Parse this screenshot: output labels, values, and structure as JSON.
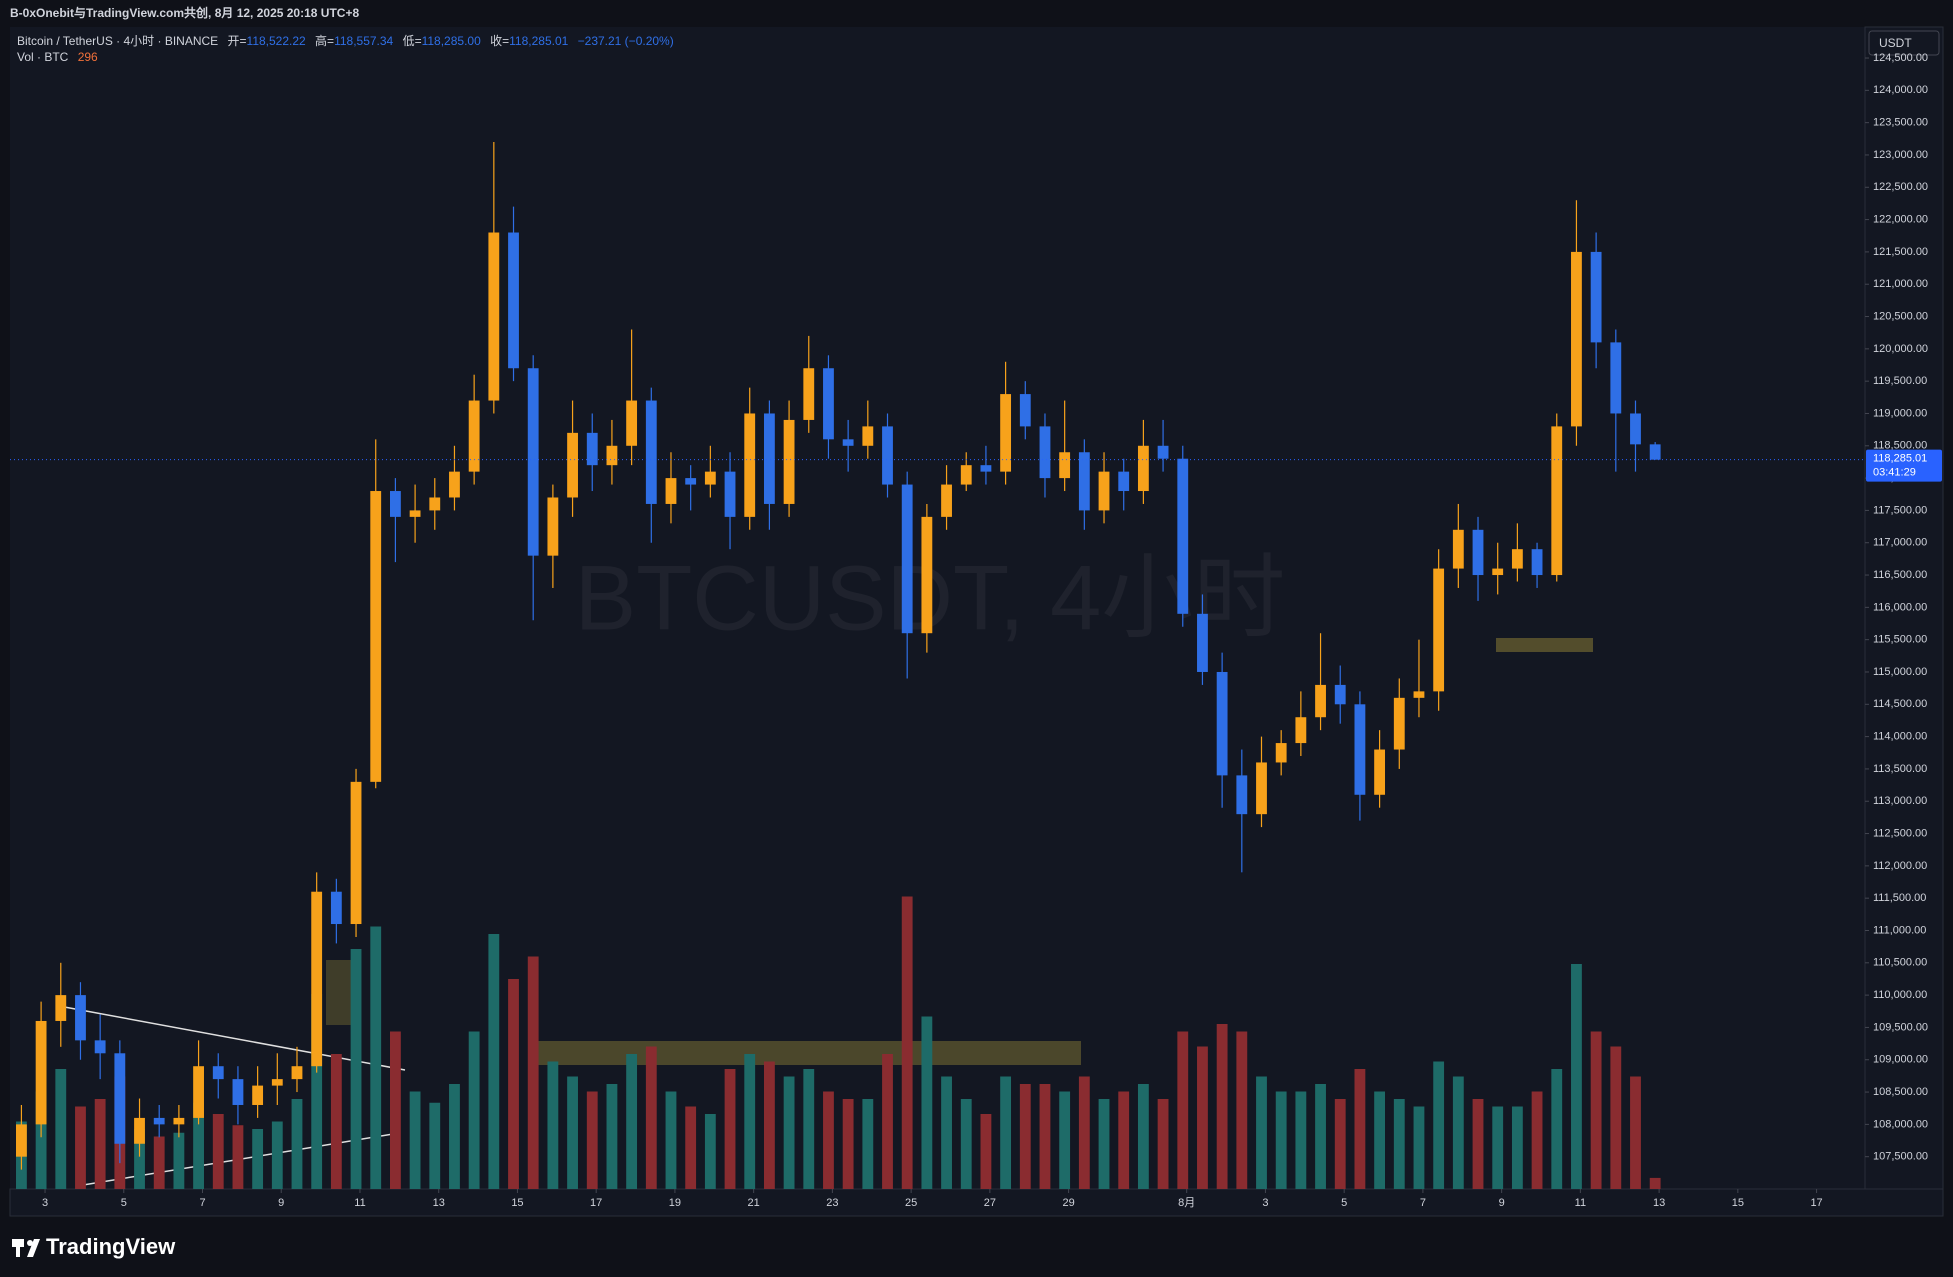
{
  "header": {
    "share_note": "B-0xOnebit与TradingView.com共创, 8月 12, 2025 20:18 UTC+8",
    "currency": "USDT",
    "logo": "TradingView"
  },
  "chart_data": {
    "type": "candlestick",
    "symbol": "Bitcoin / TetherUS · 4小时 · BINANCE",
    "legend": {
      "open_label": "开=",
      "open": "118,522.22",
      "high_label": "高=",
      "high": "118,557.34",
      "low_label": "低=",
      "low": "118,285.00",
      "close_label": "收=",
      "close": "118,285.01",
      "change": "−237.21 (−0.20%)"
    },
    "volume_title": "Vol · BTC",
    "volume_last": "296",
    "watermark": "BTCUSDT, 4小时",
    "up_color": "#f7a21b",
    "down_color": "#2f6fe6",
    "volume_up_color": "#1e6b68",
    "volume_down_color": "#8a2c30",
    "last_price": {
      "value": 118285.01,
      "label": "118,285.01"
    },
    "countdown": "03:41:29",
    "xlim": [
      2.11,
      49.23
    ],
    "xticks": [
      3,
      5,
      7,
      9,
      11,
      13,
      15,
      17,
      19,
      21,
      23,
      25,
      27,
      29,
      {
        "value": 32,
        "label": "8月"
      },
      {
        "value": 34,
        "label": "3"
      },
      {
        "value": 36,
        "label": "5"
      },
      {
        "value": 38,
        "label": "7"
      },
      {
        "value": 40,
        "label": "9"
      },
      {
        "value": 42,
        "label": "11"
      },
      {
        "value": 44,
        "label": "13"
      },
      {
        "value": 46,
        "label": "15"
      },
      {
        "value": 48,
        "label": "17"
      }
    ],
    "ylim": [
      107000,
      124980
    ],
    "yticks": [
      {
        "value": 107500,
        "label": "107,500.00"
      },
      {
        "value": 108000,
        "label": "108,000.00"
      },
      {
        "value": 108500,
        "label": "108,500.00"
      },
      {
        "value": 109000,
        "label": "109,000.00"
      },
      {
        "value": 109500,
        "label": "109,500.00"
      },
      {
        "value": 110000,
        "label": "110,000.00"
      },
      {
        "value": 110500,
        "label": "110,500.00"
      },
      {
        "value": 111000,
        "label": "111,000.00"
      },
      {
        "value": 111500,
        "label": "111,500.00"
      },
      {
        "value": 112000,
        "label": "112,000.00"
      },
      {
        "value": 112500,
        "label": "112,500.00"
      },
      {
        "value": 113000,
        "label": "113,000.00"
      },
      {
        "value": 113500,
        "label": "113,500.00"
      },
      {
        "value": 114000,
        "label": "114,000.00"
      },
      {
        "value": 114500,
        "label": "114,500.00"
      },
      {
        "value": 115000,
        "label": "115,000.00"
      },
      {
        "value": 115500,
        "label": "115,500.00"
      },
      {
        "value": 116000,
        "label": "116,000.00"
      },
      {
        "value": 116500,
        "label": "116,500.00"
      },
      {
        "value": 117000,
        "label": "117,000.00"
      },
      {
        "value": 117500,
        "label": "117,500.00"
      },
      {
        "value": 118000,
        "label": "118,000.00"
      },
      {
        "value": 118500,
        "label": "118,500.00"
      },
      {
        "value": 119000,
        "label": "119,000.00"
      },
      {
        "value": 119500,
        "label": "119,500.00"
      },
      {
        "value": 120000,
        "label": "120,000.00"
      },
      {
        "value": 120500,
        "label": "120,500.00"
      },
      {
        "value": 121000,
        "label": "121,000.00"
      },
      {
        "value": 121500,
        "label": "121,500.00"
      },
      {
        "value": 122000,
        "label": "122,000.00"
      },
      {
        "value": 122500,
        "label": "122,500.00"
      },
      {
        "value": 123000,
        "label": "123,000.00"
      },
      {
        "value": 123500,
        "label": "123,500.00"
      },
      {
        "value": 124000,
        "label": "124,000.00"
      },
      {
        "value": 124500,
        "label": "124,500.00"
      }
    ],
    "volume_lim": [
      0,
      8000
    ],
    "x": [
      2.4,
      2.9,
      3.4,
      3.9,
      4.4,
      4.9,
      5.4,
      5.9,
      6.4,
      6.9,
      7.4,
      7.9,
      8.4,
      8.9,
      9.4,
      9.9,
      10.4,
      10.9,
      11.4,
      11.9,
      12.4,
      12.9,
      13.4,
      13.9,
      14.4,
      14.9,
      15.4,
      15.9,
      16.4,
      16.9,
      17.4,
      17.9,
      18.4,
      18.9,
      19.4,
      19.9,
      20.4,
      20.9,
      21.4,
      21.9,
      22.4,
      22.9,
      23.4,
      23.9,
      24.4,
      24.9,
      25.4,
      25.9,
      26.4,
      26.9,
      27.4,
      27.9,
      28.4,
      28.9,
      29.4,
      29.9,
      30.4,
      30.9,
      31.4,
      31.9,
      32.4,
      32.9,
      33.4,
      33.9,
      34.4,
      34.9,
      35.4,
      35.9,
      36.4,
      36.9,
      37.4,
      37.9,
      38.4,
      38.9,
      39.4,
      39.9,
      40.4,
      40.9,
      41.4,
      41.9,
      42.4,
      42.9,
      43.4,
      43.9
    ],
    "ohlc": [
      [
        107500,
        108300,
        107300,
        108000
      ],
      [
        108000,
        109900,
        107800,
        109600
      ],
      [
        109600,
        110500,
        109200,
        110000
      ],
      [
        110000,
        110200,
        109000,
        109300
      ],
      [
        109300,
        109700,
        108700,
        109100
      ],
      [
        109100,
        109300,
        107400,
        107700
      ],
      [
        107700,
        108400,
        107500,
        108100
      ],
      [
        108100,
        108300,
        107800,
        108000
      ],
      [
        108000,
        108300,
        107800,
        108100
      ],
      [
        108100,
        109300,
        108000,
        108900
      ],
      [
        108900,
        109100,
        108400,
        108700
      ],
      [
        108700,
        108900,
        108000,
        108300
      ],
      [
        108300,
        108900,
        108100,
        108600
      ],
      [
        108600,
        109100,
        108300,
        108700
      ],
      [
        108700,
        109200,
        108500,
        108900
      ],
      [
        108900,
        111900,
        108800,
        111600
      ],
      [
        111600,
        111800,
        110800,
        111100
      ],
      [
        111100,
        113500,
        110900,
        113300
      ],
      [
        113300,
        118600,
        113200,
        117800
      ],
      [
        117800,
        118000,
        116700,
        117400
      ],
      [
        117400,
        117900,
        117000,
        117500
      ],
      [
        117500,
        118000,
        117200,
        117700
      ],
      [
        117700,
        118500,
        117500,
        118100
      ],
      [
        118100,
        119600,
        117900,
        119200
      ],
      [
        119200,
        123200,
        119000,
        121800
      ],
      [
        121800,
        122200,
        119500,
        119700
      ],
      [
        119700,
        119900,
        115800,
        116800
      ],
      [
        116800,
        117900,
        116300,
        117700
      ],
      [
        117700,
        119200,
        117400,
        118700
      ],
      [
        118700,
        119000,
        117800,
        118200
      ],
      [
        118200,
        118900,
        117900,
        118500
      ],
      [
        118500,
        120300,
        118200,
        119200
      ],
      [
        119200,
        119400,
        117000,
        117600
      ],
      [
        117600,
        118400,
        117300,
        118000
      ],
      [
        118000,
        118200,
        117500,
        117900
      ],
      [
        117900,
        118500,
        117700,
        118100
      ],
      [
        118100,
        118400,
        116900,
        117400
      ],
      [
        117400,
        119400,
        117200,
        119000
      ],
      [
        119000,
        119200,
        117200,
        117600
      ],
      [
        117600,
        119200,
        117400,
        118900
      ],
      [
        118900,
        120200,
        118700,
        119700
      ],
      [
        119700,
        119900,
        118300,
        118600
      ],
      [
        118600,
        118900,
        118100,
        118500
      ],
      [
        118500,
        119200,
        118300,
        118800
      ],
      [
        118800,
        119000,
        117700,
        117900
      ],
      [
        117900,
        118100,
        114900,
        115600
      ],
      [
        115600,
        117600,
        115300,
        117400
      ],
      [
        117400,
        118200,
        117200,
        117900
      ],
      [
        117900,
        118400,
        117800,
        118200
      ],
      [
        118200,
        118500,
        117900,
        118100
      ],
      [
        118100,
        119800,
        117900,
        119300
      ],
      [
        119300,
        119500,
        118600,
        118800
      ],
      [
        118800,
        119000,
        117700,
        118000
      ],
      [
        118000,
        119200,
        117800,
        118400
      ],
      [
        118400,
        118600,
        117200,
        117500
      ],
      [
        117500,
        118400,
        117300,
        118100
      ],
      [
        118100,
        118300,
        117500,
        117800
      ],
      [
        117800,
        118900,
        117600,
        118500
      ],
      [
        118500,
        118900,
        118100,
        118300
      ],
      [
        118300,
        118500,
        115700,
        115900
      ],
      [
        115900,
        116200,
        114800,
        115000
      ],
      [
        115000,
        115300,
        112900,
        113400
      ],
      [
        113400,
        113800,
        111900,
        112800
      ],
      [
        112800,
        114000,
        112600,
        113600
      ],
      [
        113600,
        114100,
        113400,
        113900
      ],
      [
        113900,
        114700,
        113700,
        114300
      ],
      [
        114300,
        115600,
        114100,
        114800
      ],
      [
        114800,
        115100,
        114200,
        114500
      ],
      [
        114500,
        114700,
        112700,
        113100
      ],
      [
        113100,
        114100,
        112900,
        113800
      ],
      [
        113800,
        114900,
        113500,
        114600
      ],
      [
        114600,
        115500,
        114300,
        114700
      ],
      [
        114700,
        116900,
        114400,
        116600
      ],
      [
        116600,
        117600,
        116300,
        117200
      ],
      [
        117200,
        117400,
        116100,
        116500
      ],
      [
        116500,
        117000,
        116200,
        116600
      ],
      [
        116600,
        117300,
        116400,
        116900
      ],
      [
        116900,
        117000,
        116300,
        116500
      ],
      [
        116500,
        119000,
        116400,
        118800
      ],
      [
        118800,
        122300,
        118500,
        121500
      ],
      [
        121500,
        121800,
        119700,
        120100
      ],
      [
        120100,
        120300,
        118100,
        119000
      ],
      [
        119000,
        119200,
        118100,
        118522.22
      ],
      [
        118522.22,
        118557.34,
        118285.0,
        118285.01
      ]
    ],
    "volume": [
      1800,
      2600,
      3200,
      2200,
      2400,
      3000,
      1600,
      1400,
      1500,
      2300,
      2000,
      1700,
      1600,
      1800,
      2400,
      5200,
      3600,
      6400,
      7000,
      4200,
      2600,
      2300,
      2800,
      4200,
      6800,
      5600,
      6200,
      3400,
      3000,
      2600,
      2800,
      3600,
      3800,
      2600,
      2200,
      2000,
      3200,
      3600,
      3400,
      3000,
      3200,
      2600,
      2400,
      2400,
      3600,
      7800,
      4600,
      3000,
      2400,
      2000,
      3000,
      2800,
      2800,
      2600,
      3000,
      2400,
      2600,
      2800,
      2400,
      4200,
      3800,
      4400,
      4200,
      3000,
      2600,
      2600,
      2800,
      2400,
      3200,
      2600,
      2400,
      2200,
      3400,
      3000,
      2400,
      2200,
      2200,
      2600,
      3200,
      6000,
      4200,
      3800,
      3000,
      296
    ]
  }
}
